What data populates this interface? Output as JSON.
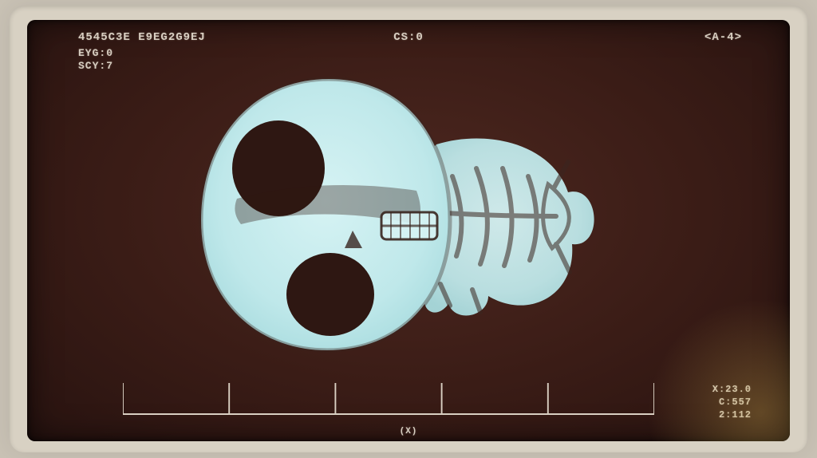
{
  "hud": {
    "top_left_line1": "4545C3E E9EG2G9EJ",
    "top_left_line2": "EYG:0",
    "top_left_line3": "SCY:7",
    "top_center": "CS:0",
    "top_right": "<A-4>",
    "bottom_right_1": "X:23.0",
    "bottom_right_2": "C:557",
    "bottom_right_3": "2:112",
    "axis_label": "(X)"
  },
  "ruler": {
    "tick_count": 6,
    "color": "#d9cfc2",
    "stroke_width": 2
  },
  "colors": {
    "bezel": "#d8d1c3",
    "screen_inner": "#3a1c16",
    "screen_outer": "#281310",
    "text": "#d9cfc2",
    "xray_glow": "#bfe8ea",
    "xray_line": "#3a2620"
  },
  "xray": {
    "glow_color": "#bfe8ea",
    "line_color": "#3a2620",
    "outline_stroke": 4
  }
}
